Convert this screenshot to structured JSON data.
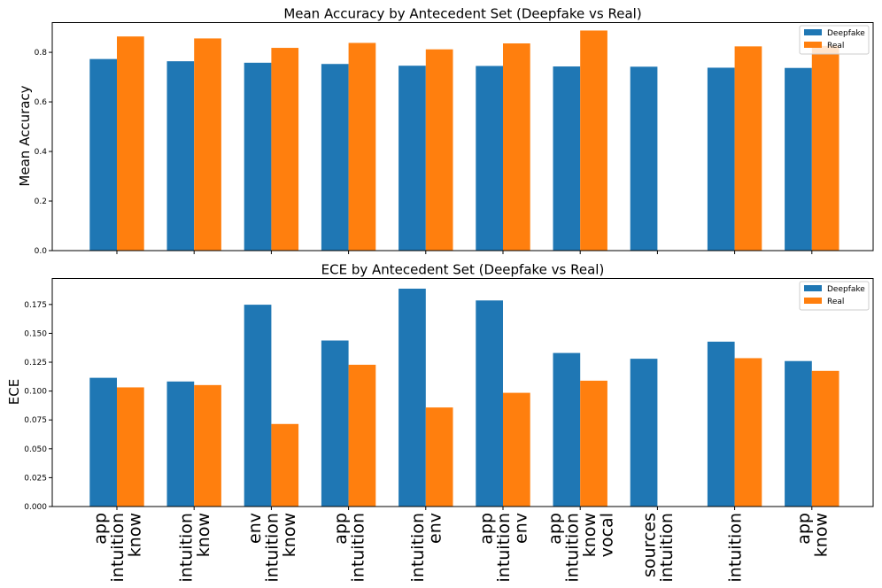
{
  "chart_data": [
    {
      "type": "bar",
      "title": "Mean Accuracy by Antecedent Set (Deepfake vs Real)",
      "ylabel": "Mean Accuracy",
      "xlabel": "",
      "ylim": [
        0,
        0.92
      ],
      "yticks": [
        "0.0",
        "0.2",
        "0.4",
        "0.6",
        "0.8"
      ],
      "yticks_values": [
        0,
        0.2,
        0.4,
        0.6,
        0.8
      ],
      "categories": [
        [
          "app",
          "intuition",
          "know"
        ],
        [
          "intuition",
          "know"
        ],
        [
          "env",
          "intuition",
          "know"
        ],
        [
          "app",
          "intuition"
        ],
        [
          "intuition",
          "env"
        ],
        [
          "app",
          "intuition",
          "env"
        ],
        [
          "app",
          "intuition",
          "know",
          "vocal"
        ],
        [
          "sources",
          "intuition"
        ],
        [
          "intuition"
        ],
        [
          "app",
          "know"
        ]
      ],
      "series": [
        {
          "name": "Deepfake",
          "color": "#1f77b4",
          "values": [
            0.773,
            0.764,
            0.758,
            0.753,
            0.746,
            0.745,
            0.743,
            0.742,
            0.738,
            0.737
          ]
        },
        {
          "name": "Real",
          "color": "#ff7f0e",
          "values": [
            0.864,
            0.856,
            0.818,
            0.838,
            0.812,
            0.836,
            0.888,
            null,
            0.824,
            0.826
          ]
        }
      ],
      "legend": {
        "position": "upper-right"
      }
    },
    {
      "type": "bar",
      "title": "ECE by Antecedent Set (Deepfake vs Real)",
      "ylabel": "ECE",
      "xlabel": "",
      "ylim": [
        0,
        0.1975
      ],
      "yticks": [
        "0.000",
        "0.025",
        "0.050",
        "0.075",
        "0.100",
        "0.125",
        "0.150",
        "0.175"
      ],
      "yticks_values": [
        0,
        0.025,
        0.05,
        0.075,
        0.1,
        0.125,
        0.15,
        0.175
      ],
      "categories": [
        [
          "app",
          "intuition",
          "know"
        ],
        [
          "intuition",
          "know"
        ],
        [
          "env",
          "intuition",
          "know"
        ],
        [
          "app",
          "intuition"
        ],
        [
          "intuition",
          "env"
        ],
        [
          "app",
          "intuition",
          "env"
        ],
        [
          "app",
          "intuition",
          "know",
          "vocal"
        ],
        [
          "sources",
          "intuition"
        ],
        [
          "intuition"
        ],
        [
          "app",
          "know"
        ]
      ],
      "series": [
        {
          "name": "Deepfake",
          "color": "#1f77b4",
          "values": [
            0.1115,
            0.1083,
            0.1748,
            0.1438,
            0.1887,
            0.1785,
            0.133,
            0.128,
            0.1428,
            0.126
          ]
        },
        {
          "name": "Real",
          "color": "#ff7f0e",
          "values": [
            0.1032,
            0.1052,
            0.0715,
            0.1228,
            0.0858,
            0.0985,
            0.109,
            null,
            0.1285,
            0.1175
          ]
        }
      ],
      "legend": {
        "position": "upper-right"
      }
    }
  ]
}
